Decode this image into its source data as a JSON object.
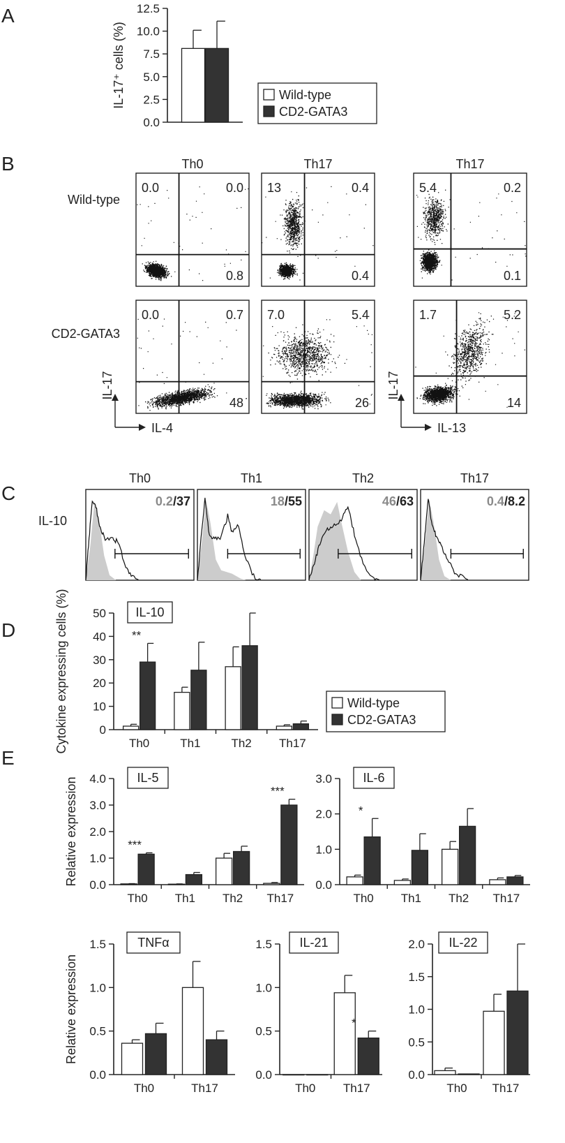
{
  "figure": {
    "panel_labels": [
      "A",
      "B",
      "C",
      "D",
      "E"
    ],
    "colors": {
      "wild_type": "#ffffff",
      "cd2_gata3": "#333333",
      "axis": "#222222",
      "isotype_fill": "#cccccc",
      "grey_text": "#8a8a8a"
    }
  },
  "legend": {
    "wild_type": "Wild-type",
    "cd2_gata3": "CD2-GATA3"
  },
  "panelB": {
    "col_titles": [
      "Th0",
      "Th17",
      "Th17"
    ],
    "row_labels": [
      "Wild-type",
      "CD2-GATA3"
    ],
    "x_axes": [
      "IL-4",
      "IL-13"
    ],
    "y_axis": "IL-17",
    "plots": [
      {
        "tl": "0.0",
        "tr": "0.0",
        "br": "0.8"
      },
      {
        "tl": "13",
        "tr": "0.4",
        "br": "0.4"
      },
      {
        "tl": "5.4",
        "tr": "0.2",
        "br": "0.1"
      },
      {
        "tl": "0.0",
        "tr": "0.7",
        "br": "48"
      },
      {
        "tl": "7.0",
        "tr": "5.4",
        "br": "26"
      },
      {
        "tl": "1.7",
        "tr": "5.2",
        "br": "14"
      }
    ]
  },
  "panelC": {
    "row_label": "IL-10",
    "plots": [
      {
        "title": "Th0",
        "grey": "0.2",
        "dark": "37"
      },
      {
        "title": "Th1",
        "grey": "18",
        "dark": "55"
      },
      {
        "title": "Th2",
        "grey": "46",
        "dark": "63"
      },
      {
        "title": "Th17",
        "grey": "0.4",
        "dark": "8.2"
      }
    ]
  },
  "chart_data": [
    {
      "id": "A",
      "type": "bar",
      "categories": [
        ""
      ],
      "ylabel": "IL-17⁺ cells (%)",
      "ylim": [
        0,
        12.5
      ],
      "yticks": [
        "0.0",
        "2.5",
        "5.0",
        "7.5",
        "10.0",
        "12.5"
      ],
      "series": [
        {
          "name": "Wild-type",
          "values": [
            8.1
          ],
          "errors": [
            2.0
          ]
        },
        {
          "name": "CD2-GATA3",
          "values": [
            8.1
          ],
          "errors": [
            3.0
          ]
        }
      ],
      "legend": "right"
    },
    {
      "id": "D",
      "type": "bar",
      "box_label": "IL-10",
      "categories": [
        "Th0",
        "Th1",
        "Th2",
        "Th17"
      ],
      "ylabel": "Cytokine expressing cells (%)",
      "ylim": [
        0,
        50
      ],
      "yticks": [
        "0",
        "10",
        "20",
        "30",
        "40",
        "50"
      ],
      "series": [
        {
          "name": "Wild-type",
          "values": [
            1.5,
            16,
            27,
            1.5
          ],
          "errors": [
            0.8,
            2.2,
            8.5,
            0.6
          ]
        },
        {
          "name": "CD2-GATA3",
          "values": [
            29,
            25.5,
            36,
            2.5
          ],
          "errors": [
            8,
            12,
            14,
            1.2
          ]
        }
      ],
      "annotations": [
        {
          "category": "Th0",
          "text": "**"
        }
      ],
      "legend": "right"
    },
    {
      "id": "E1",
      "type": "bar",
      "box_label": "IL-5",
      "categories": [
        "Th0",
        "Th1",
        "Th2",
        "Th17"
      ],
      "ylabel": "Relative expression",
      "ylim": [
        0,
        4
      ],
      "yticks": [
        "0.0",
        "1.0",
        "2.0",
        "3.0",
        "4.0"
      ],
      "series": [
        {
          "name": "Wild-type",
          "values": [
            0.03,
            0.02,
            1.0,
            0.05
          ],
          "errors": [
            0.01,
            0.01,
            0.18,
            0.03
          ]
        },
        {
          "name": "CD2-GATA3",
          "values": [
            1.15,
            0.38,
            1.25,
            3.0
          ],
          "errors": [
            0.05,
            0.08,
            0.2,
            0.22
          ]
        }
      ],
      "annotations": [
        {
          "category": "Th0",
          "text": "***"
        },
        {
          "category": "Th17",
          "text": "***"
        }
      ]
    },
    {
      "id": "E2",
      "type": "bar",
      "box_label": "IL-6",
      "categories": [
        "Th0",
        "Th1",
        "Th2",
        "Th17"
      ],
      "ylabel": "",
      "ylim": [
        0,
        3
      ],
      "yticks": [
        "0.0",
        "1.0",
        "2.0",
        "3.0"
      ],
      "series": [
        {
          "name": "Wild-type",
          "values": [
            0.22,
            0.12,
            1.0,
            0.14
          ],
          "errors": [
            0.05,
            0.04,
            0.22,
            0.05
          ]
        },
        {
          "name": "CD2-GATA3",
          "values": [
            1.35,
            0.97,
            1.65,
            0.22
          ],
          "errors": [
            0.52,
            0.47,
            0.5,
            0.04
          ]
        }
      ],
      "annotations": [
        {
          "category": "Th0",
          "text": "*"
        }
      ]
    },
    {
      "id": "E3",
      "type": "bar",
      "box_label": "TNFα",
      "categories": [
        "Th0",
        "Th17"
      ],
      "ylabel": "Relative expression",
      "ylim": [
        0,
        1.5
      ],
      "yticks": [
        "0.0",
        "0.5",
        "1.0",
        "1.5"
      ],
      "series": [
        {
          "name": "Wild-type",
          "values": [
            0.36,
            1.0
          ],
          "errors": [
            0.04,
            0.3
          ]
        },
        {
          "name": "CD2-GATA3",
          "values": [
            0.47,
            0.4
          ],
          "errors": [
            0.12,
            0.1
          ]
        }
      ]
    },
    {
      "id": "E4",
      "type": "bar",
      "box_label": "IL-21",
      "categories": [
        "Th0",
        "Th17"
      ],
      "ylabel": "",
      "ylim": [
        0,
        1.5
      ],
      "yticks": [
        "0.0",
        "0.5",
        "1.0",
        "1.5"
      ],
      "series": [
        {
          "name": "Wild-type",
          "values": [
            0.0,
            0.94
          ],
          "errors": [
            0,
            0.2
          ]
        },
        {
          "name": "CD2-GATA3",
          "values": [
            0.0,
            0.42
          ],
          "errors": [
            0,
            0.08
          ]
        }
      ],
      "annotations": [
        {
          "category": "Th17",
          "text": "*"
        }
      ]
    },
    {
      "id": "E5",
      "type": "bar",
      "box_label": "IL-22",
      "categories": [
        "Th0",
        "Th17"
      ],
      "ylabel": "",
      "ylim": [
        0,
        2
      ],
      "yticks": [
        "0.0",
        "0.5",
        "1.0",
        "1.5",
        "2.0"
      ],
      "series": [
        {
          "name": "Wild-type",
          "values": [
            0.06,
            0.97
          ],
          "errors": [
            0.04,
            0.26
          ]
        },
        {
          "name": "CD2-GATA3",
          "values": [
            0.01,
            1.28
          ],
          "errors": [
            0,
            0.72
          ]
        }
      ]
    }
  ]
}
